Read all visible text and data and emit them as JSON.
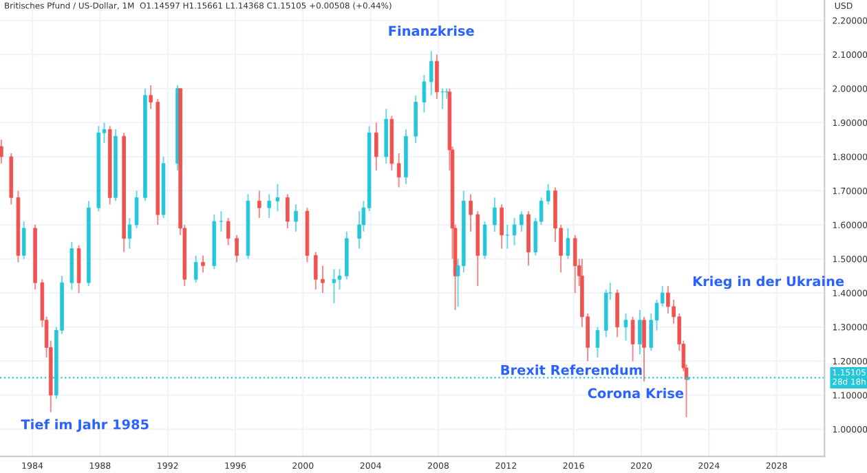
{
  "chart_data": {
    "type": "candlestick",
    "title": "Britisches Pfund / US-Dollar, 1M  O1.14597 H1.15661 L1.14368 C1.15105 +0.00508 (+0.44%)",
    "ylabel": "USD",
    "x": [
      "1982-03",
      "1982-10",
      "1983-03",
      "1983-07",
      "1984-03",
      "1984-08",
      "1984-11",
      "1985-02",
      "1985-06",
      "1985-10",
      "1986-05",
      "1986-10",
      "1987-05",
      "1987-12",
      "1988-04",
      "1988-08",
      "1988-12",
      "1989-06",
      "1989-10",
      "1990-03",
      "1990-09",
      "1991-01",
      "1991-06",
      "1991-10",
      "1992-08",
      "1992-10",
      "1993-01",
      "1993-09",
      "1994-02",
      "1994-10",
      "1995-03",
      "1995-08",
      "1996-02",
      "1996-10",
      "1997-06",
      "1998-01",
      "1998-07",
      "1999-02",
      "1999-08",
      "2000-04",
      "2000-10",
      "2001-03",
      "2001-11",
      "2002-03",
      "2002-08",
      "2003-05",
      "2003-08",
      "2003-12",
      "2004-05",
      "2004-12",
      "2005-04",
      "2005-09",
      "2006-02",
      "2006-09",
      "2007-03",
      "2007-08",
      "2007-12",
      "2008-04",
      "2008-07",
      "2008-09",
      "2008-11",
      "2009-01",
      "2009-03",
      "2009-07",
      "2009-12",
      "2010-05",
      "2010-10",
      "2011-05",
      "2011-10",
      "2012-02",
      "2012-07",
      "2012-12",
      "2013-05",
      "2013-10",
      "2014-02",
      "2014-07",
      "2014-12",
      "2015-04",
      "2015-09",
      "2016-02",
      "2016-05",
      "2016-07",
      "2016-11",
      "2017-06",
      "2017-12",
      "2018-03",
      "2018-08",
      "2019-02",
      "2019-07",
      "2019-12",
      "2020-03",
      "2020-08",
      "2020-12",
      "2021-04",
      "2021-08",
      "2021-12",
      "2022-04",
      "2022-07",
      "2022-09",
      "2022-10"
    ],
    "ohlc": [
      [
        1.83,
        1.85,
        1.78,
        1.8
      ],
      [
        1.8,
        1.81,
        1.66,
        1.68
      ],
      [
        1.68,
        1.7,
        1.49,
        1.51
      ],
      [
        1.51,
        1.61,
        1.5,
        1.59
      ],
      [
        1.59,
        1.6,
        1.41,
        1.43
      ],
      [
        1.43,
        1.44,
        1.3,
        1.32
      ],
      [
        1.32,
        1.33,
        1.21,
        1.24
      ],
      [
        1.24,
        1.26,
        1.05,
        1.1
      ],
      [
        1.1,
        1.3,
        1.09,
        1.29
      ],
      [
        1.29,
        1.45,
        1.28,
        1.43
      ],
      [
        1.43,
        1.55,
        1.41,
        1.53
      ],
      [
        1.53,
        1.54,
        1.4,
        1.43
      ],
      [
        1.43,
        1.67,
        1.42,
        1.65
      ],
      [
        1.65,
        1.89,
        1.64,
        1.87
      ],
      [
        1.87,
        1.9,
        1.84,
        1.88
      ],
      [
        1.88,
        1.89,
        1.66,
        1.68
      ],
      [
        1.68,
        1.88,
        1.67,
        1.86
      ],
      [
        1.86,
        1.87,
        1.52,
        1.56
      ],
      [
        1.56,
        1.62,
        1.53,
        1.6
      ],
      [
        1.6,
        1.7,
        1.59,
        1.68
      ],
      [
        1.68,
        2.0,
        1.67,
        1.98
      ],
      [
        1.98,
        2.01,
        1.94,
        1.96
      ],
      [
        1.96,
        1.97,
        1.6,
        1.63
      ],
      [
        1.63,
        1.8,
        1.62,
        1.78
      ],
      [
        1.78,
        2.01,
        1.76,
        2.0
      ],
      [
        2.0,
        2.0,
        1.57,
        1.59
      ],
      [
        1.59,
        1.6,
        1.42,
        1.44
      ],
      [
        1.44,
        1.51,
        1.43,
        1.49
      ],
      [
        1.49,
        1.51,
        1.46,
        1.48
      ],
      [
        1.48,
        1.63,
        1.47,
        1.61
      ],
      [
        1.61,
        1.64,
        1.58,
        1.61
      ],
      [
        1.61,
        1.62,
        1.54,
        1.56
      ],
      [
        1.56,
        1.57,
        1.49,
        1.51
      ],
      [
        1.51,
        1.69,
        1.5,
        1.67
      ],
      [
        1.67,
        1.7,
        1.62,
        1.65
      ],
      [
        1.65,
        1.69,
        1.62,
        1.67
      ],
      [
        1.67,
        1.72,
        1.64,
        1.68
      ],
      [
        1.68,
        1.69,
        1.59,
        1.61
      ],
      [
        1.61,
        1.66,
        1.58,
        1.64
      ],
      [
        1.64,
        1.65,
        1.49,
        1.51
      ],
      [
        1.51,
        1.52,
        1.41,
        1.44
      ],
      [
        1.44,
        1.48,
        1.4,
        1.43
      ],
      [
        1.43,
        1.47,
        1.37,
        1.44
      ],
      [
        1.44,
        1.47,
        1.41,
        1.45
      ],
      [
        1.45,
        1.58,
        1.44,
        1.56
      ],
      [
        1.56,
        1.64,
        1.53,
        1.6
      ],
      [
        1.6,
        1.67,
        1.58,
        1.65
      ],
      [
        1.65,
        1.89,
        1.64,
        1.87
      ],
      [
        1.87,
        1.9,
        1.76,
        1.8
      ],
      [
        1.8,
        1.94,
        1.78,
        1.91
      ],
      [
        1.91,
        1.92,
        1.76,
        1.78
      ],
      [
        1.78,
        1.81,
        1.71,
        1.74
      ],
      [
        1.74,
        1.88,
        1.72,
        1.86
      ],
      [
        1.86,
        1.98,
        1.84,
        1.96
      ],
      [
        1.96,
        2.04,
        1.93,
        2.02
      ],
      [
        2.02,
        2.11,
        1.98,
        2.08
      ],
      [
        2.08,
        2.1,
        1.97,
        1.99
      ],
      [
        1.99,
        2.0,
        1.94,
        1.99
      ],
      [
        1.99,
        2.0,
        1.97,
        1.99
      ],
      [
        1.99,
        2.0,
        1.76,
        1.82
      ],
      [
        1.82,
        1.83,
        1.5,
        1.59
      ],
      [
        1.59,
        1.6,
        1.35,
        1.45
      ],
      [
        1.45,
        1.5,
        1.36,
        1.48
      ],
      [
        1.48,
        1.7,
        1.46,
        1.67
      ],
      [
        1.67,
        1.69,
        1.58,
        1.63
      ],
      [
        1.63,
        1.64,
        1.42,
        1.51
      ],
      [
        1.51,
        1.61,
        1.5,
        1.6
      ],
      [
        1.6,
        1.68,
        1.58,
        1.65
      ],
      [
        1.65,
        1.66,
        1.53,
        1.57
      ],
      [
        1.57,
        1.6,
        1.53,
        1.57
      ],
      [
        1.57,
        1.62,
        1.54,
        1.6
      ],
      [
        1.6,
        1.64,
        1.58,
        1.63
      ],
      [
        1.63,
        1.64,
        1.48,
        1.52
      ],
      [
        1.52,
        1.62,
        1.51,
        1.61
      ],
      [
        1.61,
        1.68,
        1.6,
        1.67
      ],
      [
        1.67,
        1.72,
        1.66,
        1.7
      ],
      [
        1.7,
        1.71,
        1.55,
        1.59
      ],
      [
        1.59,
        1.6,
        1.46,
        1.51
      ],
      [
        1.51,
        1.59,
        1.5,
        1.56
      ],
      [
        1.56,
        1.57,
        1.4,
        1.48
      ],
      [
        1.48,
        1.5,
        1.42,
        1.45
      ],
      [
        1.45,
        1.5,
        1.3,
        1.33
      ],
      [
        1.33,
        1.34,
        1.2,
        1.24
      ],
      [
        1.24,
        1.3,
        1.21,
        1.29
      ],
      [
        1.29,
        1.41,
        1.27,
        1.4
      ],
      [
        1.4,
        1.43,
        1.38,
        1.4
      ],
      [
        1.4,
        1.41,
        1.27,
        1.3
      ],
      [
        1.3,
        1.34,
        1.26,
        1.32
      ],
      [
        1.32,
        1.33,
        1.2,
        1.25
      ],
      [
        1.25,
        1.35,
        1.22,
        1.32
      ],
      [
        1.32,
        1.33,
        1.14,
        1.24
      ],
      [
        1.24,
        1.34,
        1.23,
        1.32
      ],
      [
        1.32,
        1.38,
        1.29,
        1.37
      ],
      [
        1.37,
        1.42,
        1.36,
        1.4
      ],
      [
        1.4,
        1.42,
        1.34,
        1.36
      ],
      [
        1.36,
        1.38,
        1.31,
        1.33
      ],
      [
        1.33,
        1.34,
        1.23,
        1.25
      ],
      [
        1.25,
        1.26,
        1.17,
        1.18
      ],
      [
        1.18,
        1.19,
        1.035,
        1.146
      ],
      [
        1.14597,
        1.15661,
        1.14368,
        1.15105
      ]
    ],
    "colors": [
      "#ef5350",
      "#ef5350",
      "#ef5350",
      "#26c6da",
      "#ef5350",
      "#ef5350",
      "#ef5350",
      "#ef5350",
      "#26c6da",
      "#26c6da",
      "#26c6da",
      "#ef5350",
      "#26c6da",
      "#26c6da",
      "#26c6da",
      "#ef5350",
      "#26c6da",
      "#ef5350",
      "#26c6da",
      "#26c6da",
      "#26c6da",
      "#ef5350",
      "#ef5350",
      "#26c6da",
      "#26c6da",
      "#ef5350",
      "#ef5350",
      "#26c6da",
      "#ef5350",
      "#26c6da",
      "#26c6da",
      "#ef5350",
      "#ef5350",
      "#26c6da",
      "#ef5350",
      "#26c6da",
      "#26c6da",
      "#ef5350",
      "#26c6da",
      "#ef5350",
      "#ef5350",
      "#ef5350",
      "#26c6da",
      "#26c6da",
      "#26c6da",
      "#26c6da",
      "#26c6da",
      "#26c6da",
      "#ef5350",
      "#26c6da",
      "#ef5350",
      "#ef5350",
      "#26c6da",
      "#26c6da",
      "#26c6da",
      "#26c6da",
      "#ef5350",
      "#26c6da",
      "#26c6da",
      "#ef5350",
      "#ef5350",
      "#ef5350",
      "#26c6da",
      "#26c6da",
      "#ef5350",
      "#ef5350",
      "#26c6da",
      "#26c6da",
      "#ef5350",
      "#26c6da",
      "#26c6da",
      "#26c6da",
      "#ef5350",
      "#26c6da",
      "#26c6da",
      "#26c6da",
      "#ef5350",
      "#ef5350",
      "#26c6da",
      "#ef5350",
      "#ef5350",
      "#ef5350",
      "#ef5350",
      "#26c6da",
      "#26c6da",
      "#26c6da",
      "#ef5350",
      "#26c6da",
      "#ef5350",
      "#26c6da",
      "#ef5350",
      "#26c6da",
      "#26c6da",
      "#26c6da",
      "#ef5350",
      "#ef5350",
      "#ef5350",
      "#ef5350",
      "#ef5350",
      "#26c6da"
    ],
    "xlim": [
      "1982-02",
      "2030-11"
    ],
    "xticks": [
      {
        "value": "1984",
        "label": "1984"
      },
      {
        "value": "1988",
        "label": "1988"
      },
      {
        "value": "1992",
        "label": "1992"
      },
      {
        "value": "1996",
        "label": "1996"
      },
      {
        "value": "2000",
        "label": "2000"
      },
      {
        "value": "2004",
        "label": "2004"
      },
      {
        "value": "2008",
        "label": "2008"
      },
      {
        "value": "2012",
        "label": "2012"
      },
      {
        "value": "2016",
        "label": "2016"
      },
      {
        "value": "2020",
        "label": "2020"
      },
      {
        "value": "2024",
        "label": "2024"
      },
      {
        "value": "2028",
        "label": "2028"
      }
    ],
    "ylim": [
      0.92,
      2.26
    ],
    "yticks": [
      {
        "value": 1.0,
        "label": "1.00000"
      },
      {
        "value": 1.1,
        "label": "1.10000"
      },
      {
        "value": 1.2,
        "label": "1.20000"
      },
      {
        "value": 1.3,
        "label": "1.30000"
      },
      {
        "value": 1.4,
        "label": "1.40000"
      },
      {
        "value": 1.5,
        "label": "1.50000"
      },
      {
        "value": 1.6,
        "label": "1.60000"
      },
      {
        "value": 1.7,
        "label": "1.70000"
      },
      {
        "value": 1.8,
        "label": "1.80000"
      },
      {
        "value": 1.9,
        "label": "1.90000"
      },
      {
        "value": 2.0,
        "label": "2.00000"
      },
      {
        "value": 2.1,
        "label": "2.10000"
      },
      {
        "value": 2.2,
        "label": "2.20000"
      }
    ],
    "grid": true,
    "ref_lines": [
      {
        "axis": "y",
        "value": 1.15105,
        "label": "1.15105\n28d 18h",
        "color": "#26c6da",
        "line_style": "dotted"
      }
    ],
    "annotations": [
      {
        "text": "Finanzkrise",
        "x": "2007-08",
        "y": 2.11
      },
      {
        "text": "Tief im Jahr 1985",
        "x": "1985-02",
        "y": 1.05
      },
      "Brexit Referendum",
      "Corona Krise",
      {
        "text": "Krieg in der Ukraine",
        "x": "2022-02",
        "y": 1.33
      }
    ]
  }
}
